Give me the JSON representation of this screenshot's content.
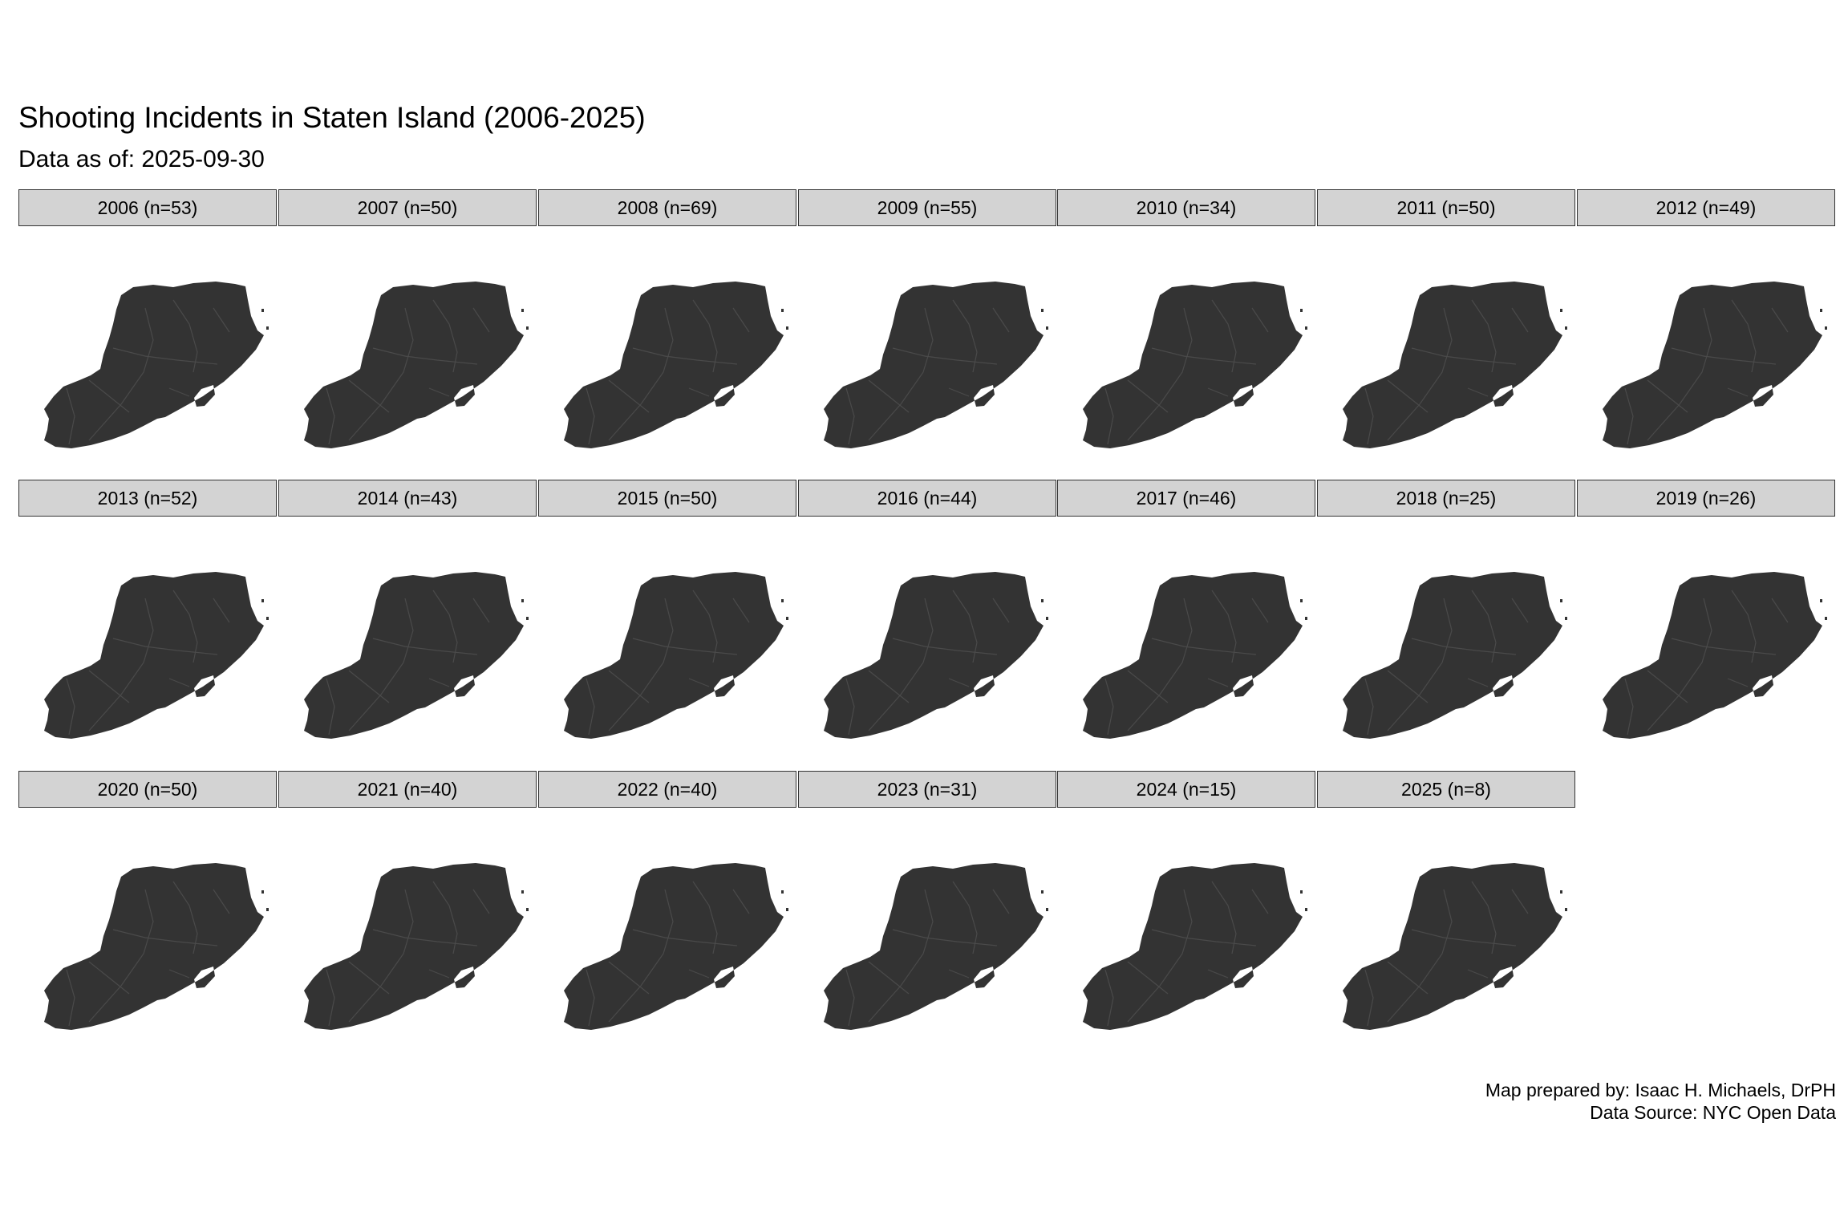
{
  "title": "Shooting Incidents in Staten Island (2006-2025)",
  "subtitle": "Data as of: 2025-09-30",
  "caption": {
    "line1": "Map prepared by: Isaac H. Michaels, DrPH",
    "line2": "Data Source: NYC Open Data"
  },
  "colors": {
    "land": "#333333",
    "boundary": "#4a4a4a",
    "point_fill": "#ff0000",
    "point_stroke": "#3a0000",
    "strip_fill": "#d3d3d3",
    "strip_border": "#333333"
  },
  "panels": [
    {
      "label": "2006 (n=53)"
    },
    {
      "label": "2007 (n=50)"
    },
    {
      "label": "2008 (n=69)"
    },
    {
      "label": "2009 (n=55)"
    },
    {
      "label": "2010 (n=34)"
    },
    {
      "label": "2011 (n=50)"
    },
    {
      "label": "2012 (n=49)"
    },
    {
      "label": "2013 (n=52)"
    },
    {
      "label": "2014 (n=43)"
    },
    {
      "label": "2015 (n=50)"
    },
    {
      "label": "2016 (n=44)"
    },
    {
      "label": "2017 (n=46)"
    },
    {
      "label": "2018 (n=25)"
    },
    {
      "label": "2019 (n=26)"
    },
    {
      "label": "2020 (n=50)"
    },
    {
      "label": "2021 (n=40)"
    },
    {
      "label": "2022 (n=40)"
    },
    {
      "label": "2023 (n=31)"
    },
    {
      "label": "2024 (n=15)"
    },
    {
      "label": "2025 (n=8)"
    }
  ]
}
